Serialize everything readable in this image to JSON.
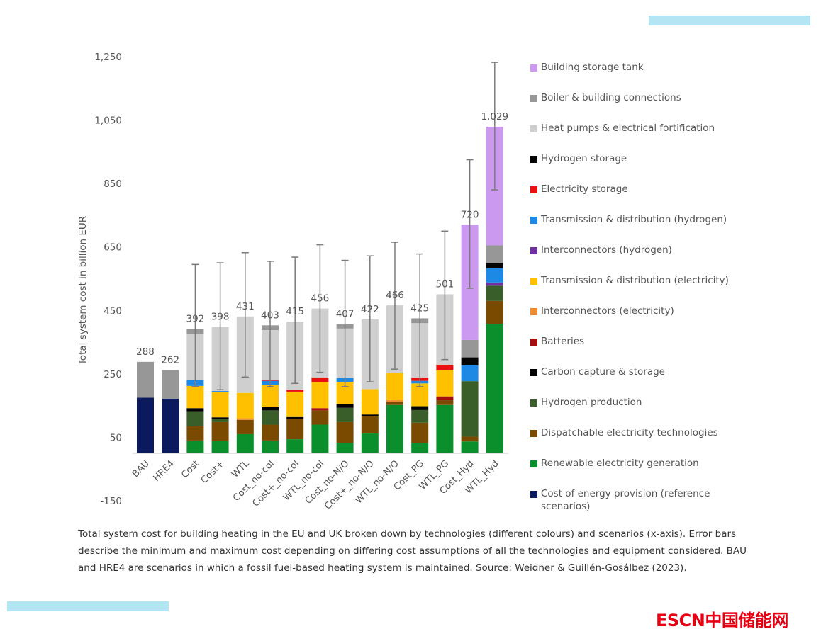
{
  "chart_data": {
    "type": "bar",
    "stacked": true,
    "title": "",
    "xlabel": "",
    "ylabel": "Total system cost in billion EUR",
    "ylim": [
      -150,
      1250
    ],
    "yticks": [
      -150,
      50,
      250,
      450,
      650,
      850,
      1050,
      1250
    ],
    "ytick_labels": [
      "-150",
      "50",
      "250",
      "450",
      "650",
      "850",
      "1,050",
      "1,250"
    ],
    "grid": false,
    "legend_position": "right",
    "categories": [
      "BAU",
      "HRE4",
      "Cost",
      "Cost+",
      "WTL",
      "Cost_no-col",
      "Cost+_no-col",
      "WTL_no-col",
      "Cost_no-N/O",
      "Cost+_no-N/O",
      "WTL_no-N/O",
      "Cost_PG",
      "WTL_PG",
      "Cost_Hyd",
      "WTL_Hyd"
    ],
    "totals": [
      288,
      262,
      392,
      398,
      431,
      403,
      415,
      456,
      407,
      422,
      466,
      425,
      501,
      720,
      1029
    ],
    "total_labels": [
      "288",
      "262",
      "392",
      "398",
      "431",
      "403",
      "415",
      "456",
      "407",
      "422",
      "466",
      "425",
      "501",
      "720",
      "1,029"
    ],
    "error_bars": [
      null,
      null,
      [
        210,
        595
      ],
      [
        200,
        600
      ],
      [
        240,
        632
      ],
      [
        210,
        605
      ],
      [
        220,
        618
      ],
      [
        255,
        657
      ],
      [
        210,
        608
      ],
      [
        225,
        622
      ],
      [
        265,
        665
      ],
      [
        210,
        628
      ],
      [
        295,
        700
      ],
      [
        520,
        925
      ],
      [
        830,
        1232
      ]
    ],
    "series": [
      {
        "name": "Cost of energy provision (reference scenarios)",
        "color": "#0b1a5e",
        "values": [
          175,
          172,
          0,
          0,
          0,
          0,
          0,
          0,
          0,
          0,
          0,
          0,
          0,
          0,
          0
        ]
      },
      {
        "name": "Renewable electricity generation",
        "color": "#0a8f2c",
        "values": [
          0,
          0,
          40,
          38,
          60,
          40,
          44,
          90,
          33,
          62,
          152,
          33,
          152,
          37,
          408
        ]
      },
      {
        "name": "Dispatchable  electricity technologies",
        "color": "#7a4a00",
        "values": [
          0,
          0,
          45,
          60,
          45,
          50,
          65,
          45,
          65,
          55,
          10,
          63,
          15,
          15,
          72
        ]
      },
      {
        "name": "Hydrogen production",
        "color": "#3a5e2a",
        "values": [
          0,
          0,
          47,
          10,
          0,
          45,
          0,
          0,
          45,
          0,
          0,
          40,
          0,
          175,
          48
        ]
      },
      {
        "name": "Carbon capture & storage",
        "color": "#000000",
        "values": [
          0,
          0,
          10,
          5,
          0,
          10,
          5,
          0,
          12,
          5,
          0,
          12,
          0,
          0,
          0
        ]
      },
      {
        "name": "Batteries",
        "color": "#a50e0e",
        "values": [
          0,
          0,
          0,
          0,
          0,
          0,
          0,
          7,
          0,
          0,
          0,
          0,
          12,
          0,
          0
        ]
      },
      {
        "name": "Interconnectors (electricity)",
        "color": "#f28a30",
        "values": [
          0,
          0,
          0,
          0,
          5,
          0,
          0,
          0,
          0,
          0,
          5,
          0,
          0,
          0,
          0
        ]
      },
      {
        "name": "Transmission & distribution (electricity)",
        "color": "#ffc000",
        "values": [
          0,
          0,
          70,
          80,
          80,
          70,
          80,
          82,
          70,
          80,
          85,
          72,
          82,
          0,
          0
        ]
      },
      {
        "name": "Interconnectors (hydrogen)",
        "color": "#7030a0",
        "values": [
          0,
          0,
          0,
          0,
          0,
          0,
          0,
          0,
          0,
          0,
          0,
          0,
          0,
          0,
          10
        ]
      },
      {
        "name": "Transmission & distribution (hydrogen)",
        "color": "#1e88e5",
        "values": [
          0,
          0,
          18,
          3,
          0,
          13,
          0,
          0,
          12,
          0,
          0,
          8,
          0,
          50,
          45
        ]
      },
      {
        "name": "Electricity storage",
        "color": "#e81010",
        "values": [
          0,
          0,
          0,
          0,
          0,
          3,
          5,
          15,
          0,
          0,
          0,
          10,
          18,
          0,
          0
        ]
      },
      {
        "name": "Hydrogen storage",
        "color": "#050505",
        "values": [
          0,
          0,
          0,
          0,
          0,
          0,
          0,
          0,
          0,
          0,
          0,
          0,
          0,
          25,
          17
        ]
      },
      {
        "name": "Heat pumps & electrical fortification",
        "color": "#cfcfcf",
        "values": [
          0,
          0,
          145,
          202,
          241,
          157,
          216,
          217,
          156,
          220,
          214,
          172,
          222,
          0,
          0
        ]
      },
      {
        "name": "Boiler & building connections",
        "color": "#979797",
        "values": [
          113,
          90,
          17,
          0,
          0,
          15,
          0,
          0,
          14,
          0,
          0,
          15,
          0,
          55,
          55
        ]
      },
      {
        "name": "Building storage tank",
        "color": "#cc99f0",
        "values": [
          0,
          0,
          0,
          0,
          0,
          0,
          0,
          0,
          0,
          0,
          0,
          0,
          0,
          363,
          374
        ]
      }
    ]
  },
  "legend": [
    {
      "label": "Building storage tank",
      "color": "#cc99f0"
    },
    {
      "label": "Boiler & building connections",
      "color": "#979797"
    },
    {
      "label": "Heat pumps & electrical fortification",
      "color": "#cfcfcf"
    },
    {
      "label": "Hydrogen storage",
      "color": "#050505"
    },
    {
      "label": "Electricity storage",
      "color": "#e81010"
    },
    {
      "label": "Transmission & distribution (hydrogen)",
      "color": "#1e88e5"
    },
    {
      "label": "Interconnectors (hydrogen)",
      "color": "#7030a0"
    },
    {
      "label": "Transmission & distribution (electricity)",
      "color": "#ffc000"
    },
    {
      "label": "Interconnectors (electricity)",
      "color": "#f28a30"
    },
    {
      "label": "Batteries",
      "color": "#a50e0e"
    },
    {
      "label": "Carbon capture & storage",
      "color": "#000000"
    },
    {
      "label": "Hydrogen production",
      "color": "#3a5e2a"
    },
    {
      "label": "Dispatchable  electricity technologies",
      "color": "#7a4a00"
    },
    {
      "label": "Renewable electricity generation",
      "color": "#0a8f2c"
    },
    {
      "label": "Cost of energy provision (reference scenarios)",
      "color": "#0b1a5e"
    }
  ],
  "caption": "Total system cost for building heating in the EU and UK broken down by technologies (different colours) and scenarios (x-axis). Error bars describe the minimum and maximum cost depending on differing cost assumptions of all the technologies and equipment considered. BAU and HRE4 are scenarios in which a fossil fuel-based heating system is maintained. Source: Weidner & Guillén-Gosálbez (2023).",
  "logo": {
    "latin": "ESCN",
    "chinese": "中国储能网",
    "color": "#e60012"
  },
  "decor": {
    "accent_color": "#b3e5f2"
  }
}
